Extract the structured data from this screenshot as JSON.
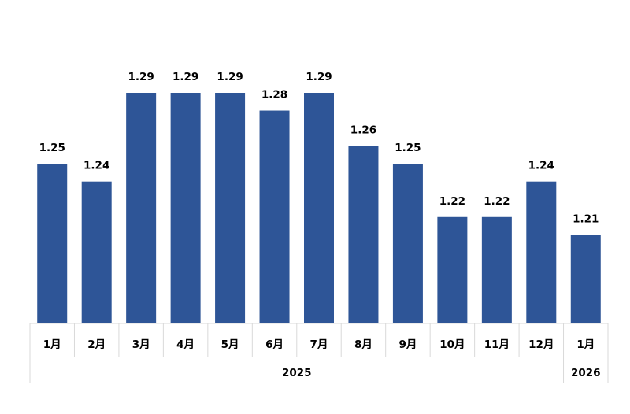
{
  "chart_data": {
    "type": "bar",
    "categories": [
      "1月",
      "2月",
      "3月",
      "4月",
      "5月",
      "6月",
      "7月",
      "8月",
      "9月",
      "10月",
      "11月",
      "12月",
      "1月"
    ],
    "values": [
      1.25,
      1.24,
      1.29,
      1.29,
      1.29,
      1.28,
      1.29,
      1.26,
      1.25,
      1.22,
      1.22,
      1.24,
      1.21
    ],
    "value_labels": [
      "1.25",
      "1.24",
      "1.29",
      "1.29",
      "1.29",
      "1.28",
      "1.29",
      "1.26",
      "1.25",
      "1.22",
      "1.22",
      "1.24",
      "1.21"
    ],
    "year_groups": [
      {
        "label": "2025",
        "count": 12
      },
      {
        "label": "2026",
        "count": 1
      }
    ],
    "title": "",
    "xlabel": "",
    "ylabel": "",
    "ylim": [
      1.16,
      1.29
    ],
    "grid": false,
    "legend": "none",
    "bar_color": "#2e5597",
    "axis_color": "#d9d9d9"
  }
}
